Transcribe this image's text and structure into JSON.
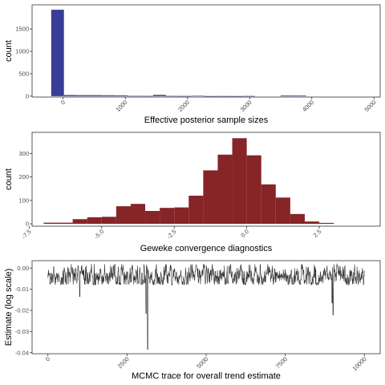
{
  "chart_data": [
    {
      "type": "bar",
      "xlabel": "Effective posterior sample sizes",
      "ylabel": "count",
      "bar_color": "#3A3D96",
      "xlim": [
        -500,
        5100
      ],
      "ylim": [
        -20,
        2040
      ],
      "xticks": [
        0,
        1000,
        2000,
        3000,
        4000,
        5000
      ],
      "xtick_labels": [
        "0",
        "1000",
        "2000",
        "3000",
        "4000",
        "5000"
      ],
      "yticks": [
        0,
        500,
        1000,
        1500
      ],
      "ytick_labels": [
        "0",
        "500",
        "1000",
        "1500"
      ],
      "bin_width": 205,
      "bin_centers": [
        -90,
        115,
        320,
        525,
        730,
        935,
        1140,
        1345,
        1550,
        1755,
        1960,
        2165,
        2370,
        2575,
        2780,
        2985,
        3190,
        3395,
        3600,
        3805,
        4010
      ],
      "values": [
        1930,
        25,
        22,
        22,
        20,
        18,
        6,
        5,
        28,
        5,
        4,
        8,
        2,
        3,
        2,
        4,
        0,
        0,
        15,
        14,
        0
      ],
      "grid": false
    },
    {
      "type": "bar",
      "xlabel": "Geweke convergence diagnostics",
      "ylabel": "count",
      "bar_color": "#862427",
      "xlim": [
        -7.4,
        4.6
      ],
      "ylim": [
        -10,
        390
      ],
      "xticks": [
        -7.5,
        -5.0,
        -2.5,
        0.0,
        2.5
      ],
      "xtick_labels": [
        "-7.5",
        "-5.0",
        "-2.5",
        "0.0",
        "2.5"
      ],
      "yticks": [
        0,
        100,
        200,
        300
      ],
      "ytick_labels": [
        "0",
        "100",
        "200",
        "300"
      ],
      "bin_width": 0.5,
      "bin_centers": [
        -6.75,
        -6.25,
        -5.75,
        -5.25,
        -4.75,
        -4.25,
        -3.75,
        -3.25,
        -2.75,
        -2.25,
        -1.75,
        -1.25,
        -0.75,
        -0.25,
        0.25,
        0.75,
        1.25,
        1.75,
        2.25,
        2.75,
        3.25,
        3.75
      ],
      "values": [
        5,
        5,
        20,
        28,
        30,
        75,
        85,
        55,
        68,
        70,
        120,
        228,
        295,
        365,
        292,
        168,
        112,
        42,
        10,
        4,
        0,
        0
      ],
      "grid": false
    },
    {
      "type": "line",
      "xlabel": "MCMC trace for overall trend estimate",
      "ylabel": "Estimate (log scale)",
      "line_color": "#333333",
      "xlim": [
        -500,
        10500
      ],
      "ylim": [
        -0.0405,
        0.0035
      ],
      "xticks": [
        0,
        2500,
        5000,
        7500,
        10000
      ],
      "xtick_labels": [
        "0",
        "2500",
        "5000",
        "7500",
        "10000"
      ],
      "yticks": [
        0.0,
        -0.01,
        -0.02,
        -0.03,
        -0.04
      ],
      "ytick_labels": [
        "0.00",
        "-0.01",
        "-0.02",
        "-0.03",
        "-0.04"
      ],
      "x_start": 0,
      "x_end": 10000,
      "n_points": 10000,
      "typical_level": -0.004,
      "typical_range": [
        -0.008,
        0.002
      ],
      "spikes": [
        {
          "x": 3150,
          "y": -0.0385
        },
        {
          "x": 3100,
          "y": -0.0215
        },
        {
          "x": 9010,
          "y": -0.0222
        },
        {
          "x": 1010,
          "y": -0.0135
        },
        {
          "x": 8980,
          "y": -0.0165
        }
      ],
      "grid": false
    }
  ]
}
